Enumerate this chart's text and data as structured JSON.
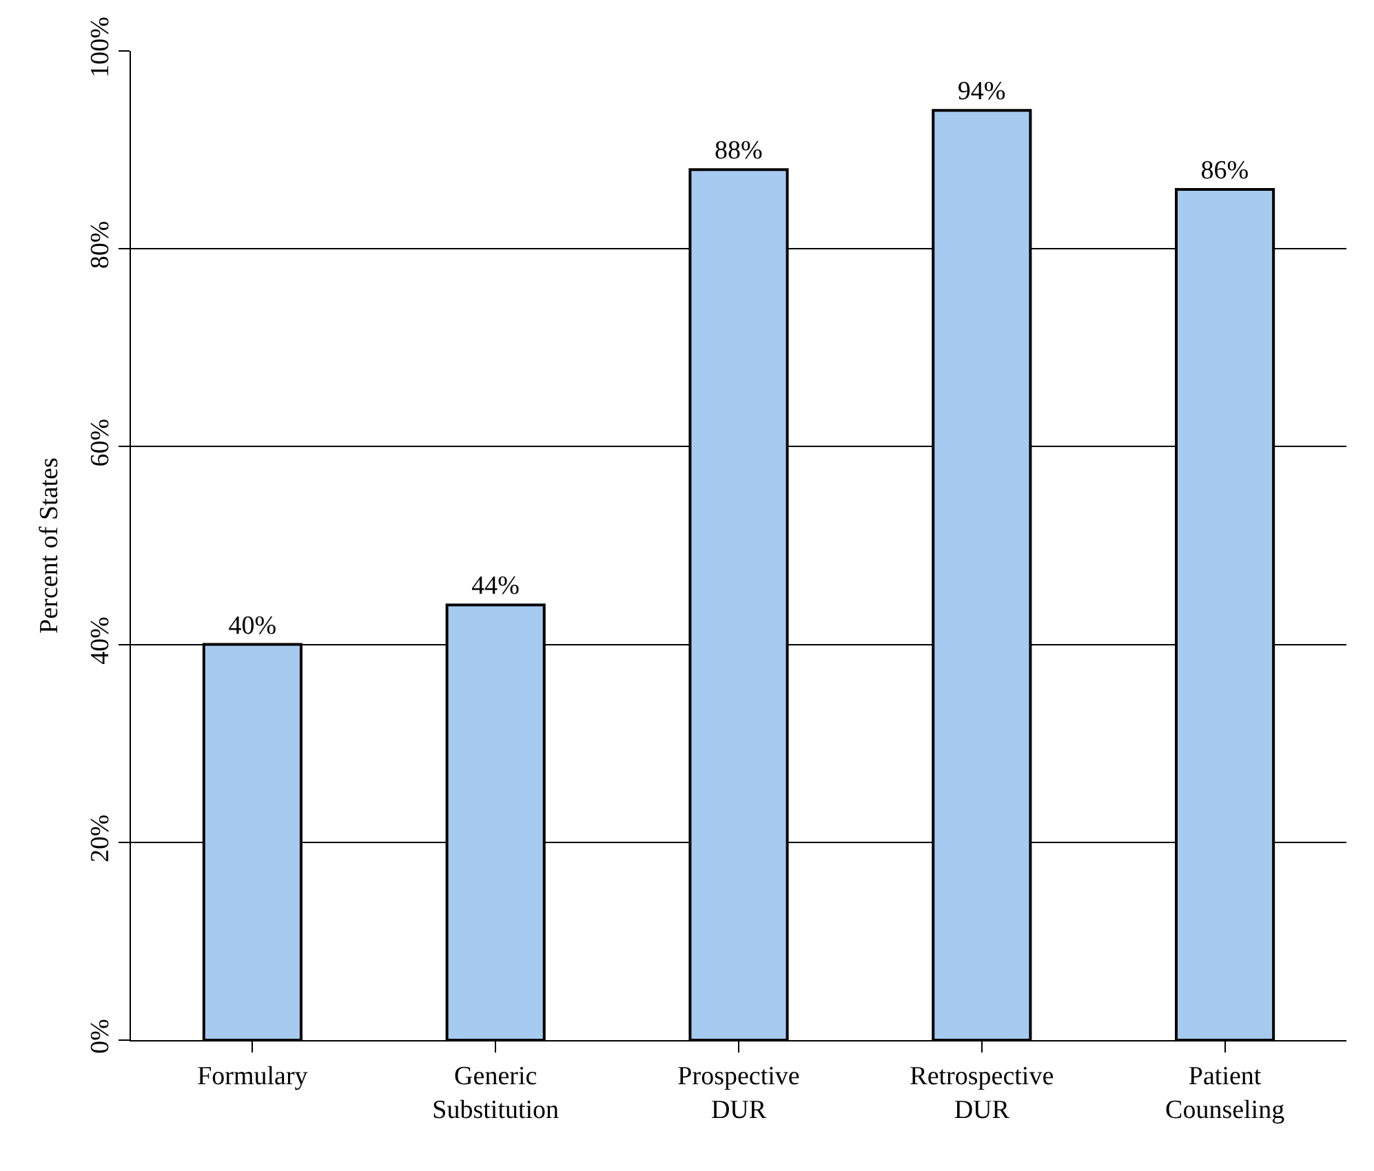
{
  "chart_data": {
    "type": "bar",
    "ylabel": "Percent of States",
    "categories": [
      "Formulary",
      "Generic Substitution",
      "Prospective DUR",
      "Retrospective DUR",
      "Patient Counseling"
    ],
    "values": [
      40,
      44,
      88,
      94,
      86
    ],
    "value_labels": [
      "40%",
      "44%",
      "88%",
      "94%",
      "86%"
    ],
    "color": "#a6caf0",
    "ylim": [
      0,
      100
    ],
    "yticks": [
      {
        "value": 0,
        "label": "0%"
      },
      {
        "value": 20,
        "label": "20%"
      },
      {
        "value": 40,
        "label": "40%"
      },
      {
        "value": 60,
        "label": "60%"
      },
      {
        "value": 80,
        "label": "80%"
      },
      {
        "value": 100,
        "label": "100%"
      }
    ],
    "grid": "y",
    "legend": false
  }
}
